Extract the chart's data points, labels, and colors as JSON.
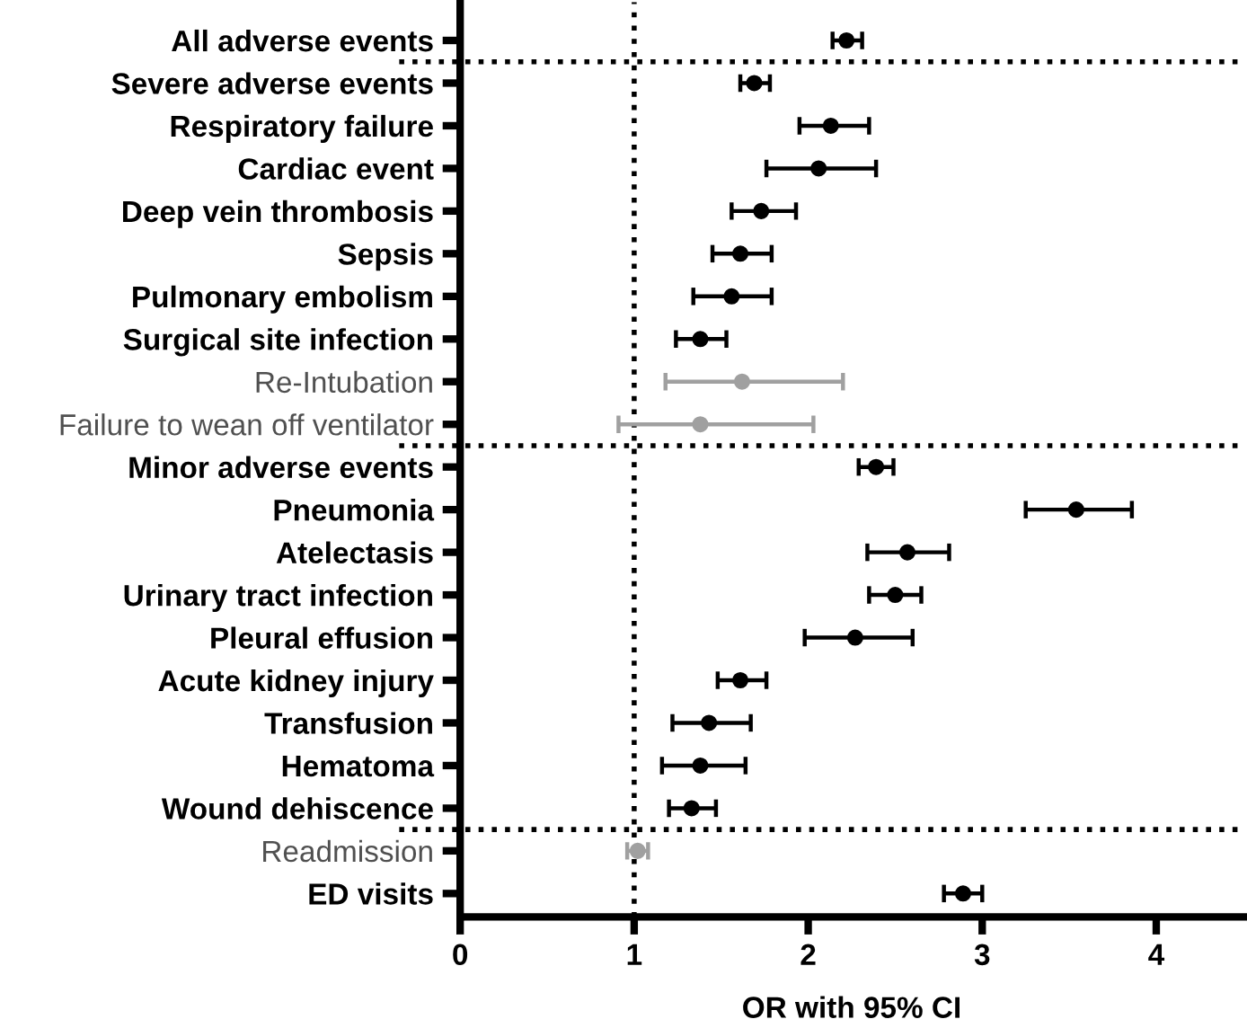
{
  "chart_data": {
    "type": "scatter",
    "xlabel": "OR with 95% CI",
    "categories": [
      "All adverse events",
      "Severe adverse events",
      "Respiratory failure",
      "Cardiac event",
      "Deep vein thrombosis",
      "Sepsis",
      "Pulmonary embolism",
      "Surgical site infection",
      "Re-Intubation",
      "Failure to wean off ventilator",
      "Minor adverse events",
      "Pneumonia",
      "Atelectasis",
      "Urinary tract infection",
      "Pleural effusion",
      "Acute kidney injury",
      "Transfusion",
      "Hematoma",
      "Wound dehiscence",
      "Readmission",
      "ED visits"
    ],
    "orientation": "horizontal",
    "series": [
      {
        "color": "#000000",
        "values": [
          2.22,
          1.69,
          2.13,
          2.06,
          1.73,
          1.61,
          1.56,
          1.38,
          null,
          null,
          2.39,
          3.54,
          2.57,
          2.5,
          2.27,
          1.61,
          1.43,
          1.38,
          1.33,
          null,
          2.89
        ],
        "errors": [
          [
            2.14,
            2.31
          ],
          [
            1.61,
            1.78
          ],
          [
            1.95,
            2.35
          ],
          [
            1.76,
            2.39
          ],
          [
            1.56,
            1.93
          ],
          [
            1.45,
            1.79
          ],
          [
            1.34,
            1.79
          ],
          [
            1.24,
            1.53
          ],
          null,
          null,
          [
            2.29,
            2.49
          ],
          [
            3.25,
            3.86
          ],
          [
            2.34,
            2.81
          ],
          [
            2.35,
            2.65
          ],
          [
            1.98,
            2.6
          ],
          [
            1.48,
            1.76
          ],
          [
            1.22,
            1.67
          ],
          [
            1.16,
            1.64
          ],
          [
            1.2,
            1.47
          ],
          null,
          [
            2.78,
            3.0
          ]
        ]
      },
      {
        "color": "#a0a0a0",
        "values": [
          null,
          null,
          null,
          null,
          null,
          null,
          null,
          null,
          1.62,
          1.38,
          null,
          null,
          null,
          null,
          null,
          null,
          null,
          null,
          null,
          1.02,
          null
        ],
        "errors": [
          null,
          null,
          null,
          null,
          null,
          null,
          null,
          null,
          [
            1.18,
            2.2
          ],
          [
            0.91,
            2.03
          ],
          null,
          null,
          null,
          null,
          null,
          null,
          null,
          null,
          null,
          [
            0.96,
            1.08
          ],
          null
        ]
      }
    ],
    "xlim": [
      0,
      4.5
    ],
    "xticks": [
      0,
      1,
      2,
      3,
      4
    ],
    "marker": "circle",
    "grid": false,
    "ref_lines": [
      {
        "axis": "x",
        "value": 1,
        "line_style": "dotted",
        "color": "#000000"
      }
    ]
  }
}
